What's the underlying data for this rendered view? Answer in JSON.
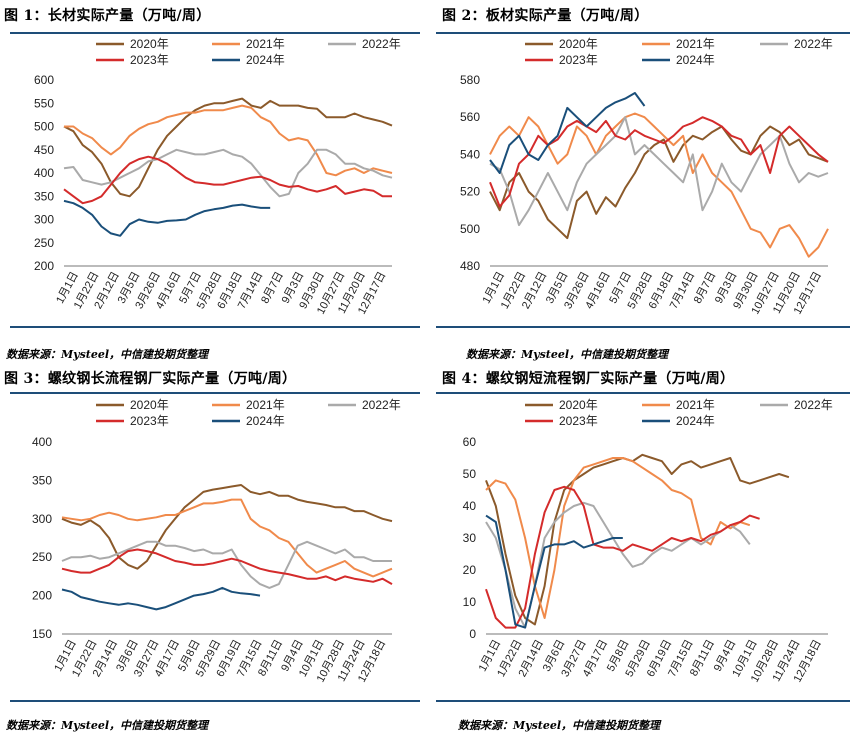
{
  "colors": {
    "2020": "#8b5a2b",
    "2021": "#f08a4b",
    "2022": "#aaaaaa",
    "2023": "#d42b2b",
    "2024": "#1a4f7a"
  },
  "charts": [
    {
      "title": "图 1：长材实际产量（万吨/周）",
      "source": "数据来源：Mysteel，中信建投期货整理",
      "chart_data": {
        "type": "line",
        "ylim": [
          200,
          600
        ],
        "yticks": [
          "200",
          "250",
          "300",
          "350",
          "400",
          "450",
          "500",
          "550",
          "600"
        ],
        "xticks": [
          "1月1日",
          "1月22日",
          "2月12日",
          "3月5日",
          "3月26日",
          "4月16日",
          "5月7日",
          "5月28日",
          "6月18日",
          "7月14日",
          "8月7日",
          "9月3日",
          "9月30日",
          "10月27日",
          "11月20日",
          "12月17日"
        ],
        "series": [
          {
            "name": "2020年",
            "values": [
              500,
              490,
              460,
              445,
              420,
              380,
              355,
              350,
              370,
              410,
              450,
              480,
              500,
              520,
              535,
              545,
              550,
              550,
              555,
              560,
              545,
              540,
              555,
              545,
              545,
              545,
              540,
              538,
              520,
              520,
              520,
              528,
              520,
              515,
              510,
              502
            ]
          },
          {
            "name": "2021年",
            "values": [
              500,
              500,
              485,
              475,
              455,
              440,
              455,
              480,
              495,
              505,
              510,
              520,
              525,
              530,
              530,
              535,
              535,
              535,
              540,
              545,
              540,
              520,
              510,
              485,
              470,
              475,
              470,
              440,
              400,
              395,
              405,
              410,
              400,
              410,
              405,
              400
            ]
          },
          {
            "name": "2022年",
            "values": [
              410,
              413,
              385,
              380,
              375,
              380,
              390,
              400,
              410,
              425,
              430,
              440,
              450,
              445,
              440,
              440,
              445,
              450,
              440,
              435,
              420,
              395,
              370,
              350,
              355,
              400,
              420,
              450,
              450,
              440,
              420,
              420,
              410,
              405,
              395,
              390
            ]
          },
          {
            "name": "2023年",
            "values": [
              365,
              350,
              335,
              340,
              350,
              375,
              400,
              420,
              430,
              435,
              430,
              420,
              405,
              390,
              380,
              378,
              375,
              375,
              380,
              385,
              390,
              392,
              385,
              375,
              370,
              372,
              365,
              360,
              365,
              372,
              355,
              360,
              365,
              362,
              350,
              350
            ]
          },
          {
            "name": "2024年",
            "values": [
              340,
              335,
              325,
              310,
              285,
              270,
              265,
              290,
              300,
              295,
              293,
              297,
              298,
              300,
              310,
              318,
              322,
              325,
              330,
              332,
              328,
              325,
              325
            ]
          }
        ]
      }
    },
    {
      "title": "图 2：板材实际产量（万吨/周）",
      "source": "数据来源：Mysteel，中信建投期货整理",
      "chart_data": {
        "type": "line",
        "ylim": [
          480,
          580
        ],
        "yticks": [
          "480",
          "500",
          "520",
          "540",
          "560",
          "580"
        ],
        "xticks": [
          "1月1日",
          "1月22日",
          "2月12日",
          "3月5日",
          "3月26日",
          "4月16日",
          "5月7日",
          "5月28日",
          "6月18日",
          "7月14日",
          "8月7日",
          "9月3日",
          "9月30日",
          "10月27日",
          "11月20日",
          "12月17日"
        ],
        "series": [
          {
            "name": "2020年",
            "values": [
              520,
              510,
              525,
              530,
              520,
              515,
              505,
              500,
              495,
              515,
              520,
              508,
              517,
              512,
              522,
              530,
              540,
              545,
              548,
              536,
              545,
              550,
              548,
              552,
              555,
              548,
              542,
              540,
              550,
              555,
              552,
              545,
              548,
              540,
              538,
              536
            ]
          },
          {
            "name": "2021年",
            "values": [
              540,
              550,
              555,
              550,
              560,
              555,
              545,
              535,
              540,
              555,
              550,
              540,
              550,
              555,
              560,
              562,
              560,
              555,
              550,
              545,
              550,
              530,
              540,
              530,
              525,
              520,
              510,
              500,
              498,
              490,
              500,
              502,
              495,
              485,
              490,
              500
            ]
          },
          {
            "name": "2022年",
            "values": [
              535,
              532,
              520,
              502,
              510,
              520,
              530,
              520,
              510,
              525,
              535,
              540,
              545,
              550,
              560,
              540,
              545,
              540,
              535,
              530,
              525,
              540,
              510,
              520,
              535,
              525,
              520,
              530,
              540,
              545,
              550,
              535,
              525,
              530,
              528,
              530
            ]
          },
          {
            "name": "2023年",
            "values": [
              525,
              512,
              518,
              535,
              540,
              550,
              545,
              548,
              555,
              558,
              555,
              552,
              558,
              550,
              548,
              553,
              550,
              548,
              546,
              550,
              555,
              557,
              560,
              558,
              555,
              550,
              548,
              540,
              545,
              530,
              550,
              555,
              550,
              545,
              540,
              536
            ]
          },
          {
            "name": "2024年",
            "values": [
              537,
              530,
              545,
              550,
              540,
              537,
              545,
              550,
              565,
              560,
              555,
              560,
              565,
              568,
              570,
              573,
              566
            ]
          }
        ]
      }
    },
    {
      "title": "图 3：螺纹钢长流程钢厂实际产量（万吨/周）",
      "source": "数据来源：Mysteel，中信建投期货整理",
      "chart_data": {
        "type": "line",
        "ylim": [
          150,
          400
        ],
        "yticks": [
          "150",
          "200",
          "250",
          "300",
          "350",
          "400"
        ],
        "xticks": [
          "1月1日",
          "1月22日",
          "2月14日",
          "3月6日",
          "3月27日",
          "4月17日",
          "5月8日",
          "5月29日",
          "6月19日",
          "7月15日",
          "8月11日",
          "9月4日",
          "10月1日",
          "10月28日",
          "11月24日",
          "12月18日"
        ],
        "series": [
          {
            "name": "2020年",
            "values": [
              300,
              295,
              292,
              298,
              290,
              275,
              250,
              240,
              235,
              245,
              265,
              285,
              300,
              315,
              325,
              335,
              338,
              340,
              342,
              344,
              335,
              332,
              335,
              330,
              330,
              325,
              322,
              320,
              318,
              315,
              315,
              310,
              310,
              305,
              300,
              297
            ]
          },
          {
            "name": "2021年",
            "values": [
              302,
              300,
              298,
              300,
              305,
              308,
              305,
              300,
              298,
              300,
              302,
              305,
              305,
              310,
              315,
              320,
              320,
              322,
              325,
              325,
              300,
              290,
              285,
              275,
              270,
              255,
              240,
              230,
              235,
              240,
              245,
              235,
              230,
              225,
              230,
              235
            ]
          },
          {
            "name": "2022年",
            "values": [
              245,
              250,
              250,
              252,
              248,
              250,
              255,
              260,
              265,
              270,
              270,
              265,
              265,
              262,
              258,
              260,
              255,
              255,
              260,
              240,
              225,
              215,
              210,
              215,
              240,
              265,
              270,
              265,
              260,
              255,
              260,
              250,
              250,
              245,
              245,
              245
            ]
          },
          {
            "name": "2023年",
            "values": [
              235,
              232,
              230,
              230,
              235,
              240,
              250,
              258,
              260,
              258,
              255,
              250,
              245,
              243,
              240,
              240,
              242,
              245,
              248,
              245,
              240,
              235,
              232,
              230,
              228,
              225,
              222,
              222,
              225,
              220,
              225,
              222,
              220,
              218,
              222,
              215
            ]
          },
          {
            "name": "2024年",
            "values": [
              208,
              205,
              198,
              195,
              192,
              190,
              188,
              190,
              188,
              185,
              182,
              185,
              190,
              195,
              200,
              202,
              205,
              210,
              205,
              203,
              202,
              200
            ]
          }
        ]
      }
    },
    {
      "title": "图 4：螺纹钢短流程钢厂实际产量（万吨/周）",
      "source": "数据来源：Mysteel，中信建投期货整理",
      "chart_data": {
        "type": "line",
        "ylim": [
          0,
          60
        ],
        "yticks": [
          "0",
          "10",
          "20",
          "30",
          "40",
          "50",
          "60"
        ],
        "xticks": [
          "1月1日",
          "1月22日",
          "2月14日",
          "3月6日",
          "3月27日",
          "4月17日",
          "5月8日",
          "5月29日",
          "6月19日",
          "7月15日",
          "8月11日",
          "9月4日",
          "10月1日",
          "10月28日",
          "11月24日",
          "12月18日"
        ],
        "series": [
          {
            "name": "2020年",
            "values": [
              48,
              40,
              25,
              12,
              5,
              3,
              15,
              35,
              45,
              48,
              50,
              52,
              53,
              54,
              55,
              54,
              56,
              55,
              54,
              50,
              53,
              54,
              52,
              53,
              54,
              55,
              48,
              47,
              48,
              49,
              50,
              49
            ]
          },
          {
            "name": "2021年",
            "values": [
              45,
              48,
              47,
              42,
              30,
              15,
              5,
              20,
              40,
              48,
              52,
              53,
              54,
              55,
              55,
              54,
              52,
              50,
              48,
              45,
              44,
              42,
              30,
              28,
              35,
              33,
              35,
              34
            ]
          },
          {
            "name": "2022年",
            "values": [
              35,
              30,
              20,
              8,
              2,
              15,
              30,
              35,
              38,
              40,
              41,
              40,
              35,
              30,
              25,
              21,
              22,
              25,
              27,
              26,
              28,
              30,
              28,
              30,
              32,
              34,
              32,
              28
            ]
          },
          {
            "name": "2023年",
            "values": [
              14,
              5,
              2,
              2,
              8,
              25,
              38,
              45,
              46,
              45,
              40,
              28,
              27,
              27,
              26,
              28,
              27,
              26,
              28,
              30,
              29,
              30,
              29,
              31,
              32,
              34,
              35,
              37,
              36
            ]
          },
          {
            "name": "2024年",
            "values": [
              37,
              35,
              20,
              3,
              2,
              15,
              27,
              28,
              28,
              29,
              27,
              28,
              29,
              30,
              30
            ]
          }
        ]
      }
    }
  ]
}
